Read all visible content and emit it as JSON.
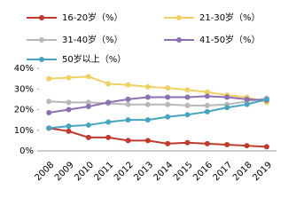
{
  "chart_data": {
    "type": "line",
    "categories": [
      "2008",
      "2009",
      "2010",
      "2011",
      "2012",
      "2013",
      "2014",
      "2015",
      "2016",
      "2017",
      "2018",
      "2019"
    ],
    "series": [
      {
        "name": "16-20岁（%）",
        "color": "#c0392b",
        "values": [
          11,
          9.5,
          6.5,
          6.5,
          5,
          5,
          3.5,
          4,
          3.5,
          3,
          2.5,
          2
        ]
      },
      {
        "name": "21-30岁（%）",
        "color": "#f0d060",
        "values": [
          35,
          35.5,
          36,
          32.5,
          32,
          31,
          30.5,
          29.5,
          28.5,
          27,
          26,
          23.5
        ]
      },
      {
        "name": "31-40岁（%）",
        "color": "#b8b8b8",
        "values": [
          24,
          23.5,
          23.5,
          23,
          22.5,
          22.5,
          22.5,
          22,
          22,
          22.5,
          24,
          25.5
        ]
      },
      {
        "name": "41-50岁（%）",
        "color": "#8e6fb0",
        "values": [
          18.5,
          20,
          21.5,
          23.5,
          25,
          26,
          26,
          26,
          26.5,
          26,
          25,
          24.5
        ]
      },
      {
        "name": "50岁以上（%）",
        "color": "#45a5c0",
        "values": [
          11,
          12,
          12.5,
          14,
          15,
          15,
          16.5,
          17.5,
          19,
          21,
          22.5,
          25
        ]
      }
    ],
    "ylim": [
      0,
      40
    ],
    "yticks": [
      {
        "value": 0,
        "label": "0%"
      },
      {
        "value": 10,
        "label": "10%"
      },
      {
        "value": 20,
        "label": "20%"
      },
      {
        "value": 30,
        "label": "30%"
      },
      {
        "value": 40,
        "label": "40%"
      }
    ],
    "grid": false
  }
}
